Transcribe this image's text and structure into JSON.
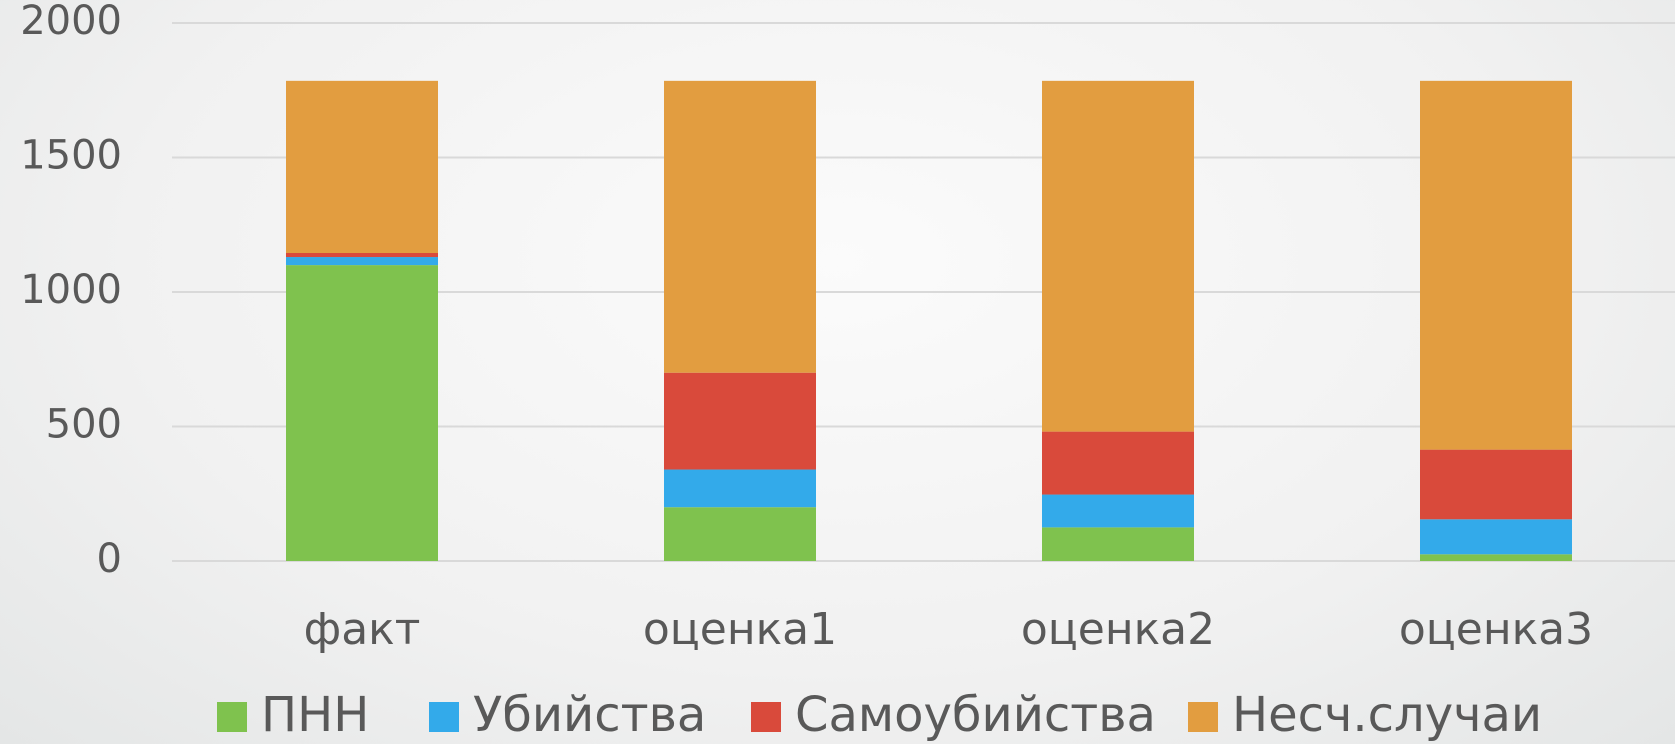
{
  "chart_data": {
    "type": "stacked_bar",
    "categories": [
      "факт",
      "оценка1",
      "оценка2",
      "оценка3"
    ],
    "series": [
      {
        "name": "ПНН",
        "color": "#7fc24e",
        "values": [
          1100,
          200,
          125,
          25
        ]
      },
      {
        "name": "Убийства",
        "color": "#33aaea",
        "values": [
          30,
          140,
          122,
          130
        ]
      },
      {
        "name": "Самоубийства",
        "color": "#d94a3b",
        "values": [
          15,
          360,
          234,
          259
        ]
      },
      {
        "name": "Несч.случаи",
        "color": "#e29d40",
        "values": [
          640,
          1085,
          1304,
          1371
        ]
      }
    ],
    "ylim": [
      0,
      2000
    ],
    "yticks": [
      0,
      500,
      1000,
      1500,
      2000
    ],
    "grid": true,
    "legend": "bottom"
  }
}
